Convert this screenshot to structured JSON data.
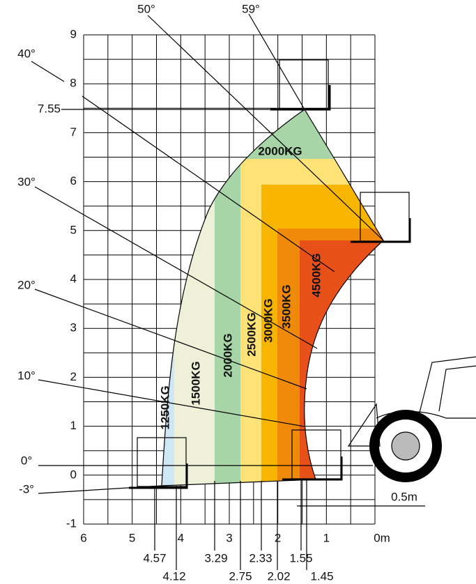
{
  "y_axis": {
    "labels": [
      "9",
      "8",
      "7",
      "6",
      "5",
      "4",
      "3",
      "2",
      "1",
      "0",
      "-1"
    ]
  },
  "x_axis": {
    "labels": [
      "6",
      "5",
      "4",
      "3",
      "2",
      "1",
      "0m"
    ]
  },
  "height_mark": "7.55",
  "scale_label": "0.5m",
  "angles": [
    "59°",
    "50°",
    "40°",
    "30°",
    "20°",
    "10°",
    "0°",
    "-3°"
  ],
  "reach_marks": [
    "4.57",
    "4.12",
    "3.29",
    "2.75",
    "2.33",
    "2.02",
    "1.55",
    "1.45"
  ],
  "zones": [
    "1250KG",
    "1500KG",
    "2000KG",
    "2500KG",
    "3000KG",
    "3500KG",
    "4500KG",
    "2000KG"
  ]
}
